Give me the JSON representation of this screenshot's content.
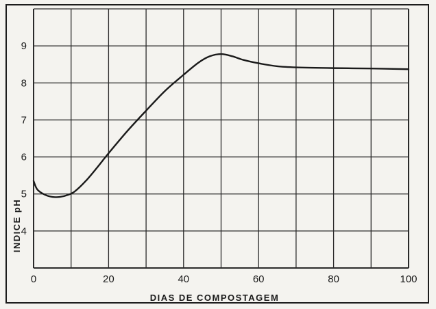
{
  "chart_data": {
    "type": "line",
    "xlabel": "DIAS DE COMPOSTAGEM",
    "ylabel": "INDICE pH",
    "xlim": [
      0,
      100
    ],
    "ylim": [
      3,
      10
    ],
    "xticks": [
      0,
      20,
      40,
      60,
      80,
      100
    ],
    "yticks": [
      4,
      5,
      6,
      7,
      8,
      9
    ],
    "grid": true,
    "series": [
      {
        "x": [
          0,
          1,
          3,
          5,
          7,
          9,
          11,
          14,
          17,
          20,
          25,
          30,
          35,
          40,
          44,
          47,
          50,
          53,
          56,
          60,
          65,
          70,
          80,
          90,
          100
        ],
        "y": [
          5.35,
          5.12,
          4.98,
          4.92,
          4.92,
          4.97,
          5.07,
          5.36,
          5.72,
          6.1,
          6.7,
          7.25,
          7.78,
          8.22,
          8.55,
          8.72,
          8.78,
          8.72,
          8.62,
          8.53,
          8.45,
          8.42,
          8.4,
          8.39,
          8.37
        ]
      }
    ],
    "colors": {
      "line": "#1a1a1a",
      "grid": "#2a2a2a",
      "background": "#f4f3ef"
    }
  }
}
